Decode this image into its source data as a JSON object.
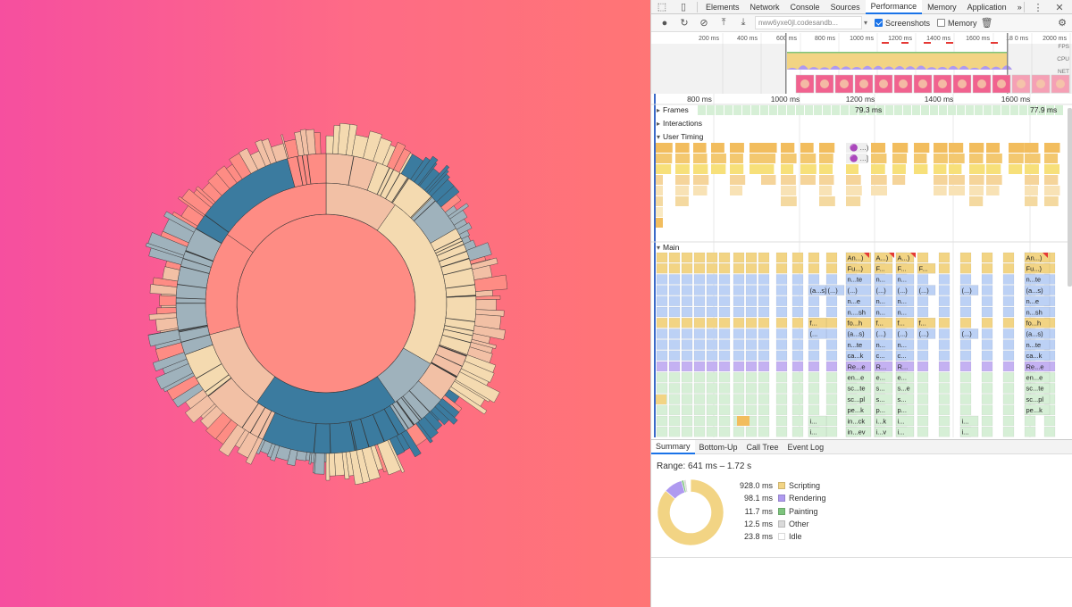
{
  "devtools": {
    "tabs": [
      "Elements",
      "Network",
      "Console",
      "Sources",
      "Performance",
      "Memory",
      "Application"
    ],
    "active_tab": "Performance",
    "more_label": "»",
    "url": "nww6yxe0jl.codesandb...",
    "screenshots_label": "Screenshots",
    "memory_label": "Memory",
    "screenshots_checked": true,
    "memory_checked": false,
    "overview": {
      "ticks": [
        "200 ms",
        "400 ms",
        "600 ms",
        "800 ms",
        "1000 ms",
        "1200 ms",
        "1400 ms",
        "1600 ms",
        "18 0 ms",
        "2000 ms"
      ],
      "lanes": [
        "FPS",
        "CPU",
        "NET"
      ]
    },
    "timeline": {
      "ticks": [
        "800 ms",
        "1000 ms",
        "1200 ms",
        "1400 ms",
        "1600 ms"
      ],
      "frames_label": "Frames",
      "frame_values": [
        "79.3 ms",
        "77.9 ms"
      ],
      "interactions_label": "Interactions",
      "user_timing_label": "User Timing",
      "user_timing_marks": [
        "…)",
        "…]"
      ],
      "main_label": "Main",
      "main_rows": [
        [
          "An...)",
          "A...)",
          "A...)",
          "An...)"
        ],
        [
          "Fu...)",
          "F...",
          "F...",
          "F...",
          "Fu...)"
        ],
        [
          "n...te",
          "n...",
          "n...",
          "n...te"
        ],
        [
          "(a...s)",
          "(...)",
          "(...)",
          "(...)",
          "(...)",
          "(...)",
          "(...)",
          "(a...s)"
        ],
        [
          "n...e",
          "n...",
          "n...",
          "n...e"
        ],
        [
          "n....sh",
          "n...",
          "n...",
          "n...sh"
        ],
        [
          "f...",
          "fo...h",
          "f...",
          "f...",
          "f...",
          "fo...h"
        ],
        [
          "(...",
          "(a...s)",
          "(...)",
          "(...)",
          "(...)",
          "(...)",
          "(a...s)"
        ],
        [
          "n...te",
          "n...",
          "n...",
          "n...te"
        ],
        [
          "ca...k",
          "c...",
          "c...",
          "ca...k"
        ],
        [
          "Re...e",
          "R...",
          "R...",
          "Re...e"
        ],
        [
          "en...e",
          "e...",
          "e...",
          "en...e"
        ],
        [
          "sc...te",
          "s...",
          "s...e",
          "sc...te"
        ],
        [
          "sc...pl",
          "s...",
          "s...",
          "sc...pl"
        ],
        [
          "pe...k",
          "p...",
          "p...",
          "pe...k"
        ],
        [
          "i...",
          "in...ck",
          "i...k",
          "i...",
          "i..."
        ],
        [
          "i...",
          "in...ev",
          "i...v",
          "i...",
          "i..."
        ]
      ]
    },
    "bottom_tabs": [
      "Summary",
      "Bottom-Up",
      "Call Tree",
      "Event Log"
    ],
    "active_bottom_tab": "Summary",
    "summary": {
      "range": "Range: 641 ms – 1.72 s",
      "items": [
        {
          "value": "928.0 ms",
          "label": "Scripting",
          "ms": 928.0,
          "color": "#f2d484"
        },
        {
          "value": "98.1 ms",
          "label": "Rendering",
          "ms": 98.1,
          "color": "#af9af0"
        },
        {
          "value": "11.7 ms",
          "label": "Painting",
          "ms": 11.7,
          "color": "#7dc47d"
        },
        {
          "value": "12.5 ms",
          "label": "Other",
          "ms": 12.5,
          "color": "#dadada"
        },
        {
          "value": "23.8 ms",
          "label": "Idle",
          "ms": 23.8,
          "color": "#ffffff"
        }
      ]
    }
  },
  "colors": {
    "gradient_left": "#f64f9f",
    "gradient_right": "#ff7575",
    "salmon": "#fe8c84",
    "peach": "#f2c0a5",
    "sand": "#f4dab0",
    "dark_blue": "#3b7b9f",
    "gray_blue": "#9fb2bc",
    "scripting": "#f2d484",
    "rendering": "#af9af0",
    "painting": "#7dc47d",
    "js_blue": "#bcd1f5",
    "frame_green": "#d6efd6"
  }
}
